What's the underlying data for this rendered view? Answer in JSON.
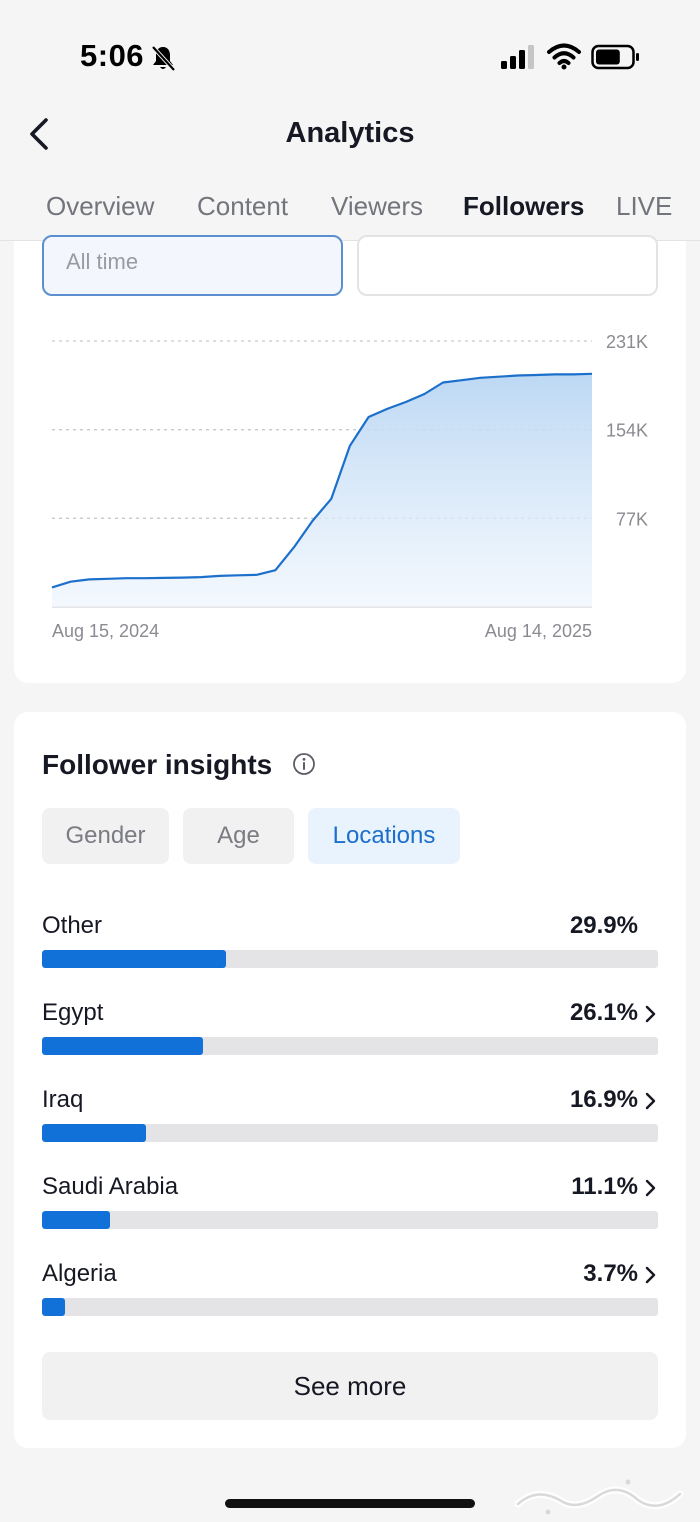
{
  "status_bar": {
    "time": "5:06",
    "battery_level": 0.7
  },
  "header": {
    "title": "Analytics"
  },
  "tabs": [
    {
      "label": "Overview"
    },
    {
      "label": "Content"
    },
    {
      "label": "Viewers"
    },
    {
      "label": "Followers",
      "active": true
    },
    {
      "label": "LIVE"
    }
  ],
  "date_filter": {
    "value": "All time"
  },
  "chart_data": {
    "type": "area",
    "x_labels": [
      "Aug 15, 2024",
      "Aug 14, 2025"
    ],
    "y_ticks": [
      "231K",
      "154K",
      "77K"
    ],
    "y_tick_values": [
      231000,
      154000,
      77000
    ],
    "ylim": [
      0,
      231000
    ],
    "grid": true,
    "line_color": "#1c6fcb",
    "series": [
      {
        "values": [
          17000,
          22000,
          24000,
          24500,
          25000,
          25000,
          25300,
          25500,
          26000,
          27000,
          27500,
          28000,
          32000,
          52000,
          75000,
          94000,
          140000,
          165000,
          172000,
          178000,
          185000,
          195000,
          197000,
          199000,
          200000,
          201000,
          201500,
          202000,
          202000,
          202500
        ]
      }
    ]
  },
  "insights": {
    "title": "Follower insights",
    "segments": [
      {
        "label": "Gender"
      },
      {
        "label": "Age"
      },
      {
        "label": "Locations",
        "active": true
      }
    ],
    "locations": [
      {
        "name": "Other",
        "pct": "29.9%",
        "value": 29.9,
        "has_chevron": false
      },
      {
        "name": "Egypt",
        "pct": "26.1%",
        "value": 26.1,
        "has_chevron": true
      },
      {
        "name": "Iraq",
        "pct": "16.9%",
        "value": 16.9,
        "has_chevron": true
      },
      {
        "name": "Saudi Arabia",
        "pct": "11.1%",
        "value": 11.1,
        "has_chevron": true
      },
      {
        "name": "Algeria",
        "pct": "3.7%",
        "value": 3.7,
        "has_chevron": true
      }
    ],
    "bar_scale_max": 100,
    "see_more_label": "See more"
  },
  "colors": {
    "accent": "#1171d8",
    "active_segment_text": "#1c6fcb",
    "text": "#161823"
  }
}
